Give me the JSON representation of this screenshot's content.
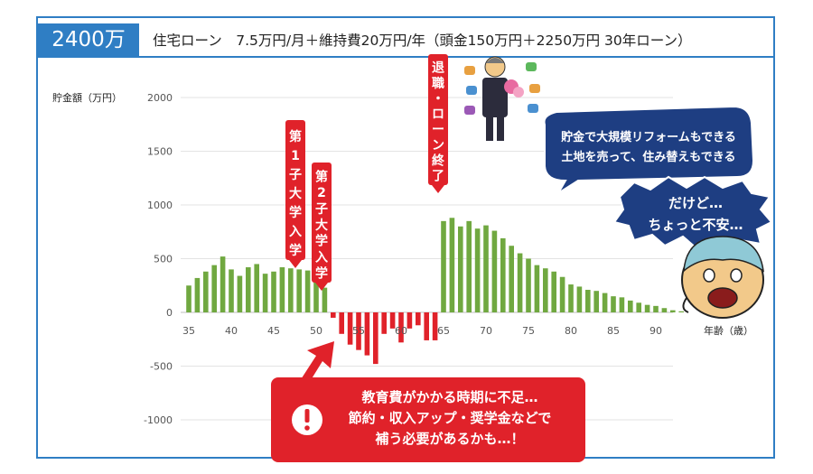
{
  "header": {
    "amount": "2400万",
    "subtitle": "住宅ローン　7.5万円/月＋維持費20万円/年（頭金150万円＋2250万円 30年ローン）"
  },
  "chart_data": {
    "type": "bar",
    "ylabel": "貯金額（万円）",
    "xlabel": "年齢（歳）",
    "ylim": [
      -1000,
      2000
    ],
    "yticks": [
      "2000",
      "1500",
      "1000",
      "500",
      "0",
      "-500",
      "-1000"
    ],
    "xticks": [
      "35",
      "40",
      "45",
      "50",
      "55",
      "60",
      "65",
      "70",
      "75",
      "80",
      "85",
      "90"
    ],
    "x": [
      35,
      36,
      37,
      38,
      39,
      40,
      41,
      42,
      43,
      44,
      45,
      46,
      47,
      48,
      49,
      50,
      51,
      52,
      53,
      54,
      55,
      56,
      57,
      58,
      59,
      60,
      61,
      62,
      63,
      64,
      65,
      66,
      67,
      68,
      69,
      70,
      71,
      72,
      73,
      74,
      75,
      76,
      77,
      78,
      79,
      80,
      81,
      82,
      83,
      84,
      85,
      86,
      87,
      88,
      89,
      90,
      91,
      92,
      93
    ],
    "values": [
      250,
      320,
      380,
      440,
      520,
      400,
      340,
      420,
      450,
      360,
      380,
      420,
      410,
      400,
      390,
      350,
      230,
      -50,
      -200,
      -300,
      -350,
      -400,
      -480,
      -200,
      -150,
      -280,
      -150,
      -120,
      -260,
      -260,
      850,
      880,
      800,
      850,
      780,
      810,
      760,
      690,
      620,
      550,
      500,
      440,
      410,
      380,
      330,
      260,
      240,
      210,
      200,
      180,
      150,
      140,
      110,
      90,
      70,
      60,
      40,
      20,
      10
    ],
    "colors": {
      "positive": "#70a840",
      "negative": "#e0222a"
    },
    "grid": true
  },
  "annotations": {
    "child1": "第1子 大学入学",
    "child2": "第2子 大学入学",
    "retire": "退職・ローン終了",
    "bubble_lines": [
      "貯金で大規模リフォームもできる",
      "土地を売って、住み替えもできる"
    ],
    "worry_lines": [
      "だけど…",
      "ちょっと不安…"
    ],
    "alert_lines": [
      "教育費がかかる時期に不足…",
      "節約・収入アップ・奨学金などで",
      "補う必要があるかも…！"
    ],
    "alert_icon": "exclamation-icon",
    "accent": "#e0222a",
    "bubble_color": "#1e3e82"
  }
}
